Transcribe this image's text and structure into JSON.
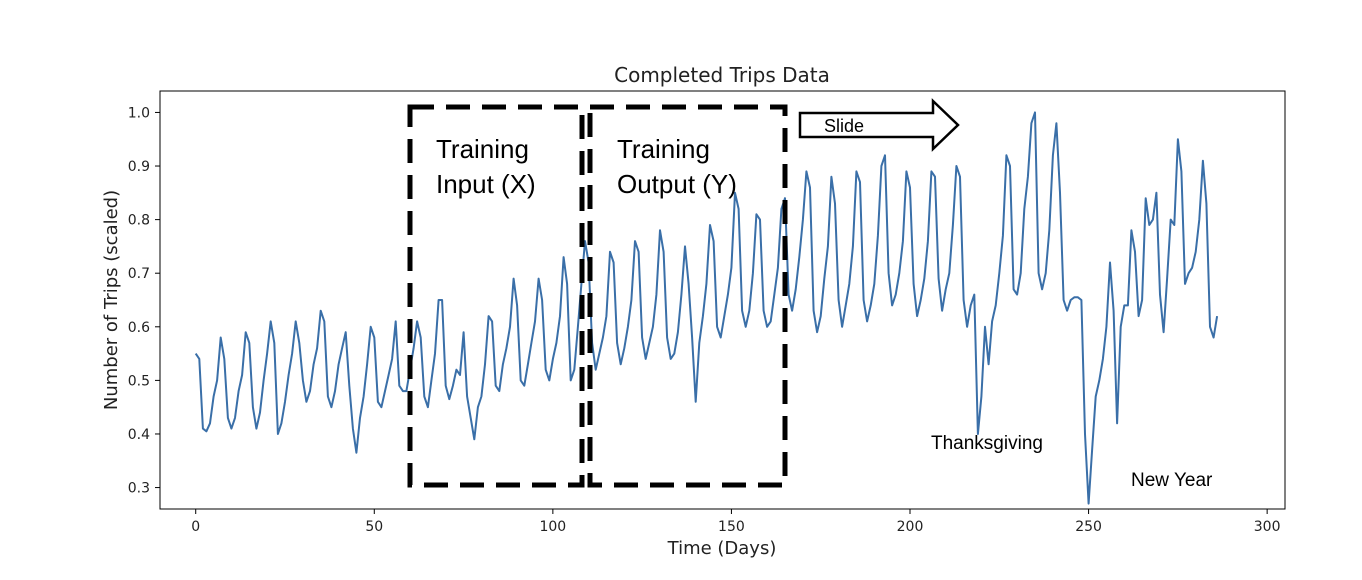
{
  "chart_data": {
    "type": "line",
    "title": "Completed Trips Data",
    "xlabel": "Time (Days)",
    "ylabel": "Number of Trips (scaled)",
    "xlim": [
      -10,
      305
    ],
    "ylim": [
      0.26,
      1.04
    ],
    "xticks": [
      0,
      50,
      100,
      150,
      200,
      250,
      300
    ],
    "yticks": [
      0.3,
      0.4,
      0.5,
      0.6,
      0.7,
      0.8,
      0.9,
      1.0
    ],
    "ytick_labels": [
      "0.3",
      "0.4",
      "0.5",
      "0.6",
      "0.7",
      "0.8",
      "0.9",
      "1.0"
    ],
    "grid": false,
    "line_color": "#3a6fa8",
    "series": [
      {
        "x_start": 0,
        "values": [
          0.55,
          0.54,
          0.41,
          0.405,
          0.42,
          0.47,
          0.5,
          0.58,
          0.54,
          0.43,
          0.41,
          0.43,
          0.48,
          0.51,
          0.59,
          0.57,
          0.45,
          0.41,
          0.44,
          0.5,
          0.55,
          0.61,
          0.57,
          0.4,
          0.42,
          0.46,
          0.51,
          0.55,
          0.61,
          0.57,
          0.5,
          0.46,
          0.48,
          0.53,
          0.56,
          0.63,
          0.61,
          0.47,
          0.45,
          0.48,
          0.53,
          0.56,
          0.59,
          0.49,
          0.41,
          0.365,
          0.43,
          0.47,
          0.53,
          0.6,
          0.58,
          0.46,
          0.45,
          0.48,
          0.51,
          0.54,
          0.61,
          0.49,
          0.48,
          0.48,
          0.52,
          0.56,
          0.61,
          0.58,
          0.47,
          0.45,
          0.5,
          0.55,
          0.65,
          0.65,
          0.49,
          0.465,
          0.49,
          0.52,
          0.51,
          0.59,
          0.47,
          0.43,
          0.39,
          0.45,
          0.47,
          0.53,
          0.62,
          0.61,
          0.49,
          0.48,
          0.53,
          0.56,
          0.6,
          0.69,
          0.64,
          0.5,
          0.49,
          0.53,
          0.57,
          0.61,
          0.69,
          0.65,
          0.52,
          0.5,
          0.54,
          0.57,
          0.62,
          0.73,
          0.68,
          0.5,
          0.52,
          0.6,
          0.68,
          0.76,
          0.72,
          0.57,
          0.52,
          0.55,
          0.58,
          0.62,
          0.74,
          0.72,
          0.57,
          0.53,
          0.56,
          0.6,
          0.65,
          0.76,
          0.74,
          0.58,
          0.54,
          0.57,
          0.6,
          0.66,
          0.78,
          0.74,
          0.58,
          0.54,
          0.55,
          0.59,
          0.66,
          0.75,
          0.68,
          0.58,
          0.46,
          0.57,
          0.62,
          0.68,
          0.79,
          0.76,
          0.6,
          0.58,
          0.62,
          0.66,
          0.71,
          0.85,
          0.82,
          0.63,
          0.6,
          0.63,
          0.7,
          0.81,
          0.8,
          0.63,
          0.6,
          0.61,
          0.66,
          0.71,
          0.82,
          0.84,
          0.66,
          0.63,
          0.67,
          0.73,
          0.8,
          0.89,
          0.86,
          0.63,
          0.59,
          0.62,
          0.69,
          0.75,
          0.88,
          0.83,
          0.65,
          0.6,
          0.64,
          0.68,
          0.75,
          0.89,
          0.87,
          0.65,
          0.61,
          0.64,
          0.68,
          0.77,
          0.9,
          0.92,
          0.7,
          0.64,
          0.66,
          0.7,
          0.76,
          0.89,
          0.86,
          0.68,
          0.62,
          0.65,
          0.69,
          0.76,
          0.89,
          0.88,
          0.69,
          0.63,
          0.67,
          0.7,
          0.79,
          0.9,
          0.88,
          0.65,
          0.6,
          0.64,
          0.66,
          0.4,
          0.47,
          0.6,
          0.53,
          0.61,
          0.64,
          0.7,
          0.77,
          0.92,
          0.9,
          0.67,
          0.66,
          0.7,
          0.82,
          0.88,
          0.98,
          1.0,
          0.7,
          0.67,
          0.7,
          0.78,
          0.92,
          0.98,
          0.85,
          0.65,
          0.63,
          0.65,
          0.655,
          0.655,
          0.65,
          0.4,
          0.27,
          0.37,
          0.47,
          0.5,
          0.54,
          0.6,
          0.72,
          0.63,
          0.42,
          0.6,
          0.64,
          0.64,
          0.78,
          0.74,
          0.62,
          0.65,
          0.84,
          0.79,
          0.8,
          0.85,
          0.66,
          0.59,
          0.69,
          0.8,
          0.79,
          0.95,
          0.89,
          0.68,
          0.7,
          0.71,
          0.74,
          0.8,
          0.91,
          0.83,
          0.6,
          0.58,
          0.62
        ]
      }
    ],
    "annotations": {
      "training_input_line1": "Training",
      "training_input_line2": "Input (X)",
      "training_output_line1": "Training",
      "training_output_line2": "Output (Y)",
      "slide": "Slide",
      "thanksgiving": "Thanksgiving",
      "new_year": "New Year"
    }
  }
}
